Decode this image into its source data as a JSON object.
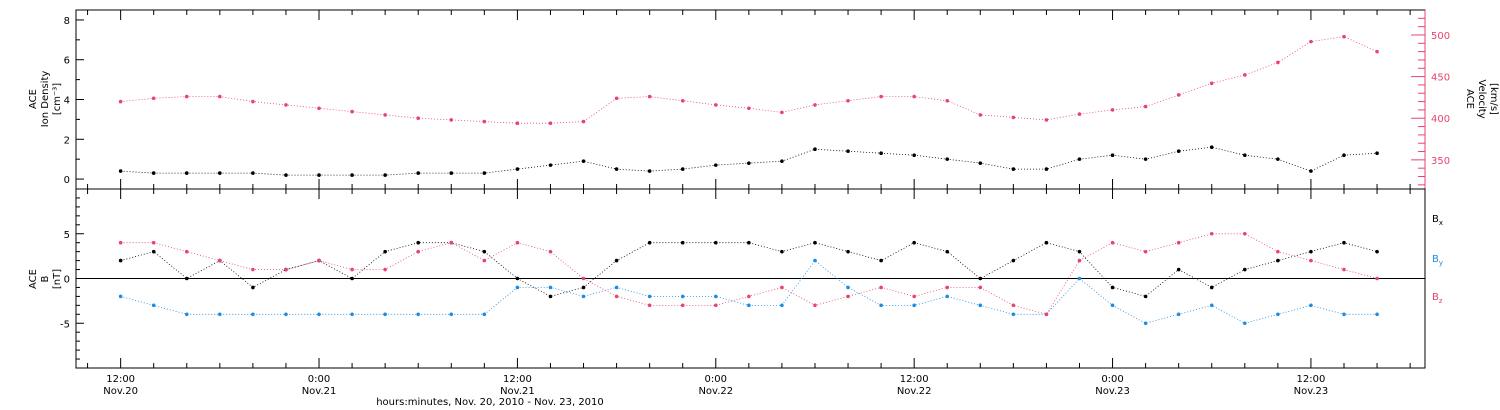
{
  "chart_data": [
    {
      "type": "scatter",
      "panel": "top",
      "ylabel_left": [
        "ACE",
        "Ion Density",
        "[cm⁻³]"
      ],
      "ylabel_right": [
        "ACE",
        "Velocity",
        "[km/s]"
      ],
      "ylim_left": [
        -0.5,
        8.5
      ],
      "yticks_left": [
        "0",
        "2",
        "4",
        "6",
        "8"
      ],
      "ylim_right": [
        315,
        530
      ],
      "yticks_right": [
        "350",
        "400",
        "450",
        "500"
      ],
      "xlim_hours": [
        -2.7,
        78.9
      ],
      "grid": false,
      "series": [
        {
          "color": "#000000",
          "axis": "left",
          "x_hours": [
            0,
            2,
            4,
            6,
            8,
            10,
            12,
            14,
            16,
            18,
            20,
            22,
            24,
            26,
            28,
            30,
            32,
            34,
            36,
            38,
            40,
            42,
            44,
            46,
            48,
            50,
            52,
            54,
            56,
            58,
            60,
            62,
            64,
            66,
            68,
            70,
            72,
            74,
            76
          ],
          "values": [
            0.4,
            0.3,
            0.3,
            0.3,
            0.3,
            0.2,
            0.2,
            0.2,
            0.2,
            0.3,
            0.3,
            0.3,
            0.5,
            0.7,
            0.9,
            0.5,
            0.4,
            0.5,
            0.7,
            0.8,
            0.9,
            1.5,
            1.4,
            1.3,
            1.2,
            1.0,
            0.8,
            0.5,
            0.5,
            1.0,
            1.2,
            1.0,
            1.4,
            1.6,
            1.2,
            1.0,
            0.4,
            1.2,
            1.3
          ]
        },
        {
          "color": "#e8446e",
          "axis": "right",
          "x_hours": [
            0,
            2,
            4,
            6,
            8,
            10,
            12,
            14,
            16,
            18,
            20,
            22,
            24,
            26,
            28,
            30,
            32,
            34,
            36,
            38,
            40,
            42,
            44,
            46,
            48,
            50,
            52,
            54,
            56,
            58,
            60,
            62,
            64,
            66,
            68,
            70,
            72,
            74,
            76
          ],
          "values": [
            420,
            424,
            426,
            426,
            420,
            416,
            412,
            408,
            404,
            400,
            398,
            396,
            394,
            394,
            396,
            424,
            426,
            421,
            416,
            412,
            407,
            416,
            421,
            426,
            426,
            421,
            404,
            401,
            398,
            405,
            410,
            414,
            428,
            442,
            452,
            467,
            492,
            498,
            480
          ]
        }
      ]
    },
    {
      "type": "scatter",
      "panel": "bottom",
      "ylabel_left": [
        "ACE",
        "B",
        "[nT]"
      ],
      "ylim": [
        -10,
        10
      ],
      "yticks": [
        "-5",
        "0",
        "5"
      ],
      "zero_line": true,
      "xlim_hours": [
        -2.7,
        78.9
      ],
      "grid": false,
      "legend": "right",
      "series": [
        {
          "name": "Bx",
          "color": "#000000",
          "x_hours": [
            0,
            2,
            4,
            6,
            8,
            10,
            12,
            14,
            16,
            18,
            20,
            22,
            24,
            26,
            28,
            30,
            32,
            34,
            36,
            38,
            40,
            42,
            44,
            46,
            48,
            50,
            52,
            54,
            56,
            58,
            60,
            62,
            64,
            66,
            68,
            70,
            72,
            74,
            76
          ],
          "values": [
            2,
            3,
            0,
            2,
            -1,
            1,
            2,
            0,
            3,
            4,
            4,
            3,
            0,
            -2,
            -1,
            2,
            4,
            4,
            4,
            4,
            3,
            4,
            3,
            2,
            4,
            3,
            0,
            2,
            4,
            3,
            -1,
            -2,
            1,
            -1,
            1,
            2,
            3,
            4,
            3
          ]
        },
        {
          "name": "By",
          "color": "#1e8ce0",
          "x_hours": [
            0,
            2,
            4,
            6,
            8,
            10,
            12,
            14,
            16,
            18,
            20,
            22,
            24,
            26,
            28,
            30,
            32,
            34,
            36,
            38,
            40,
            42,
            44,
            46,
            48,
            50,
            52,
            54,
            56,
            58,
            60,
            62,
            64,
            66,
            68,
            70,
            72,
            74,
            76
          ],
          "values": [
            -2,
            -3,
            -4,
            -4,
            -4,
            -4,
            -4,
            -4,
            -4,
            -4,
            -4,
            -4,
            -1,
            -1,
            -2,
            -1,
            -2,
            -2,
            -2,
            -3,
            -3,
            2,
            -1,
            -3,
            -3,
            -2,
            -3,
            -4,
            -4,
            0,
            -3,
            -5,
            -4,
            -3,
            -5,
            -4,
            -3,
            -4,
            -4
          ]
        },
        {
          "name": "Bz",
          "color": "#e8446e",
          "x_hours": [
            0,
            2,
            4,
            6,
            8,
            10,
            12,
            14,
            16,
            18,
            20,
            22,
            24,
            26,
            28,
            30,
            32,
            34,
            36,
            38,
            40,
            42,
            44,
            46,
            48,
            50,
            52,
            54,
            56,
            58,
            60,
            62,
            64,
            66,
            68,
            70,
            72,
            74,
            76
          ],
          "values": [
            4,
            4,
            3,
            2,
            1,
            1,
            2,
            1,
            1,
            3,
            4,
            2,
            4,
            3,
            0,
            -2,
            -3,
            -3,
            -3,
            -2,
            -1,
            -3,
            -2,
            -1,
            -2,
            -1,
            -1,
            -3,
            -4,
            2,
            4,
            3,
            4,
            5,
            5,
            3,
            2,
            1,
            0
          ]
        }
      ]
    }
  ],
  "xaxis": {
    "tick_times": [
      "12:00",
      "0:00",
      "12:00",
      "0:00",
      "12:00",
      "0:00",
      "12:00"
    ],
    "tick_dates": [
      "Nov.20",
      "Nov.21",
      "Nov.21",
      "Nov.22",
      "Nov.22",
      "Nov.23",
      "Nov.23"
    ],
    "tick_hours": [
      0,
      12,
      24,
      36,
      48,
      60,
      72
    ],
    "label": "hours:minutes, Nov. 20, 2010 - Nov. 23, 2010"
  },
  "legend_labels": {
    "Bx": [
      "B",
      "x"
    ],
    "By": [
      "B",
      "y"
    ],
    "Bz": [
      "B",
      "z"
    ]
  }
}
